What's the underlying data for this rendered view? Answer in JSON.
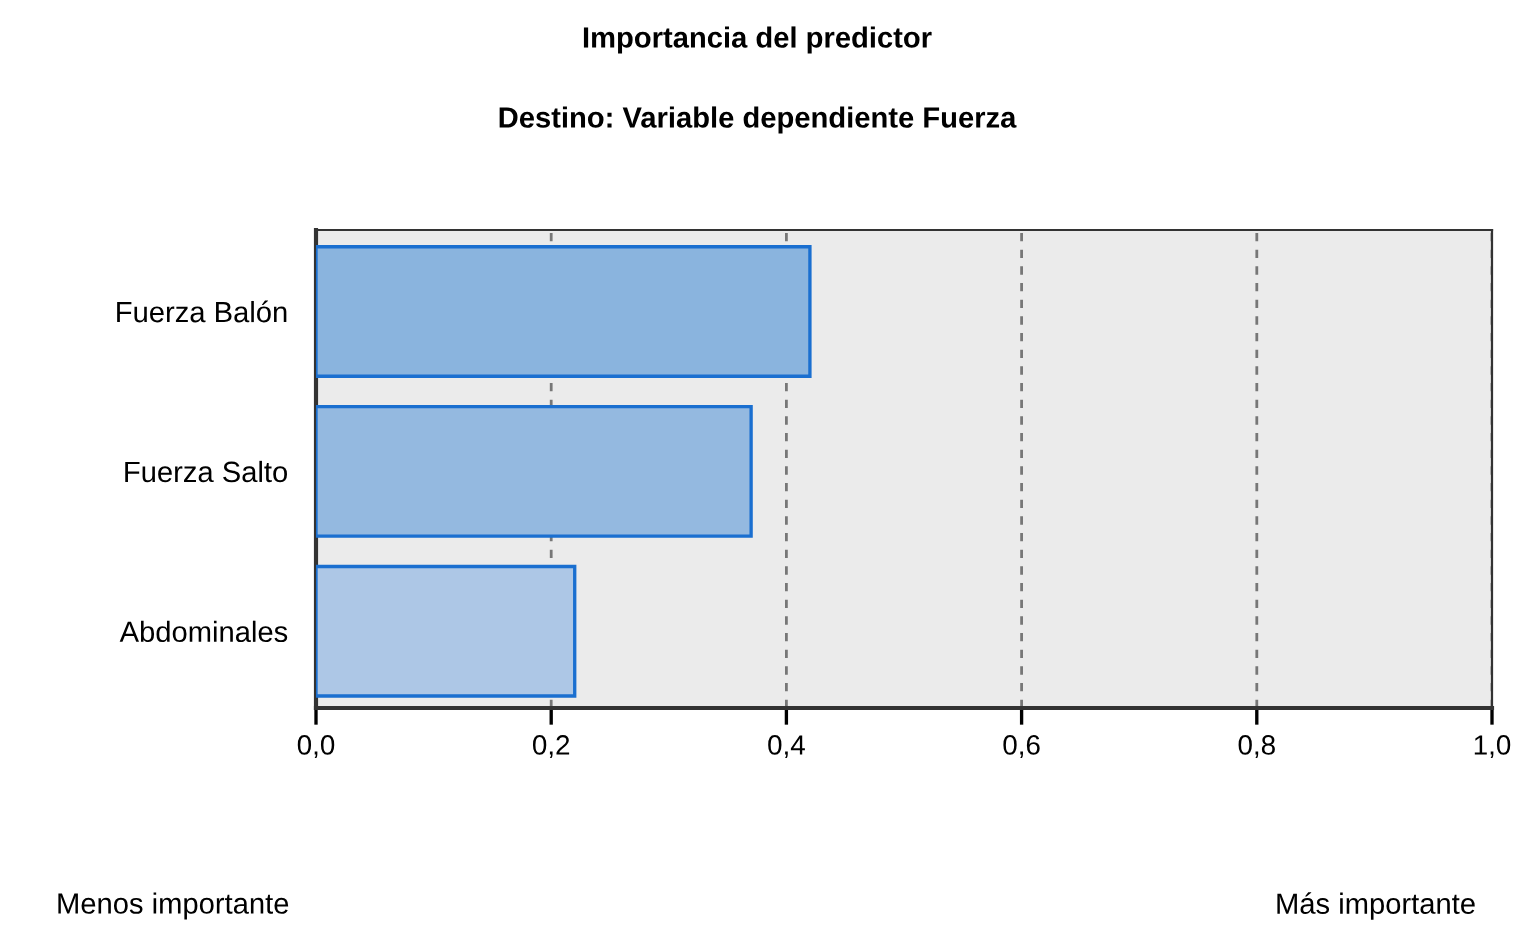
{
  "chart_data": {
    "type": "bar",
    "orientation": "horizontal",
    "title": "Importancia del predictor",
    "subtitle": "Destino: Variable dependiente Fuerza",
    "categories": [
      "Fuerza Balón",
      "Fuerza Salto",
      "Abdominales"
    ],
    "values": [
      0.42,
      0.37,
      0.22
    ],
    "colors": [
      "#8ab4de",
      "#94b9e0",
      "#adc7e6"
    ],
    "xlim": [
      0,
      1
    ],
    "xticks": [
      {
        "value": 0,
        "label": "0,0"
      },
      {
        "value": 0.2,
        "label": "0,2"
      },
      {
        "value": 0.4,
        "label": "0,4"
      },
      {
        "value": 0.6,
        "label": "0,6"
      },
      {
        "value": 0.8,
        "label": "0,8"
      },
      {
        "value": 1,
        "label": "1,0"
      }
    ],
    "grid": "x",
    "annotations": [
      "Menos importante",
      "Más importante"
    ]
  }
}
